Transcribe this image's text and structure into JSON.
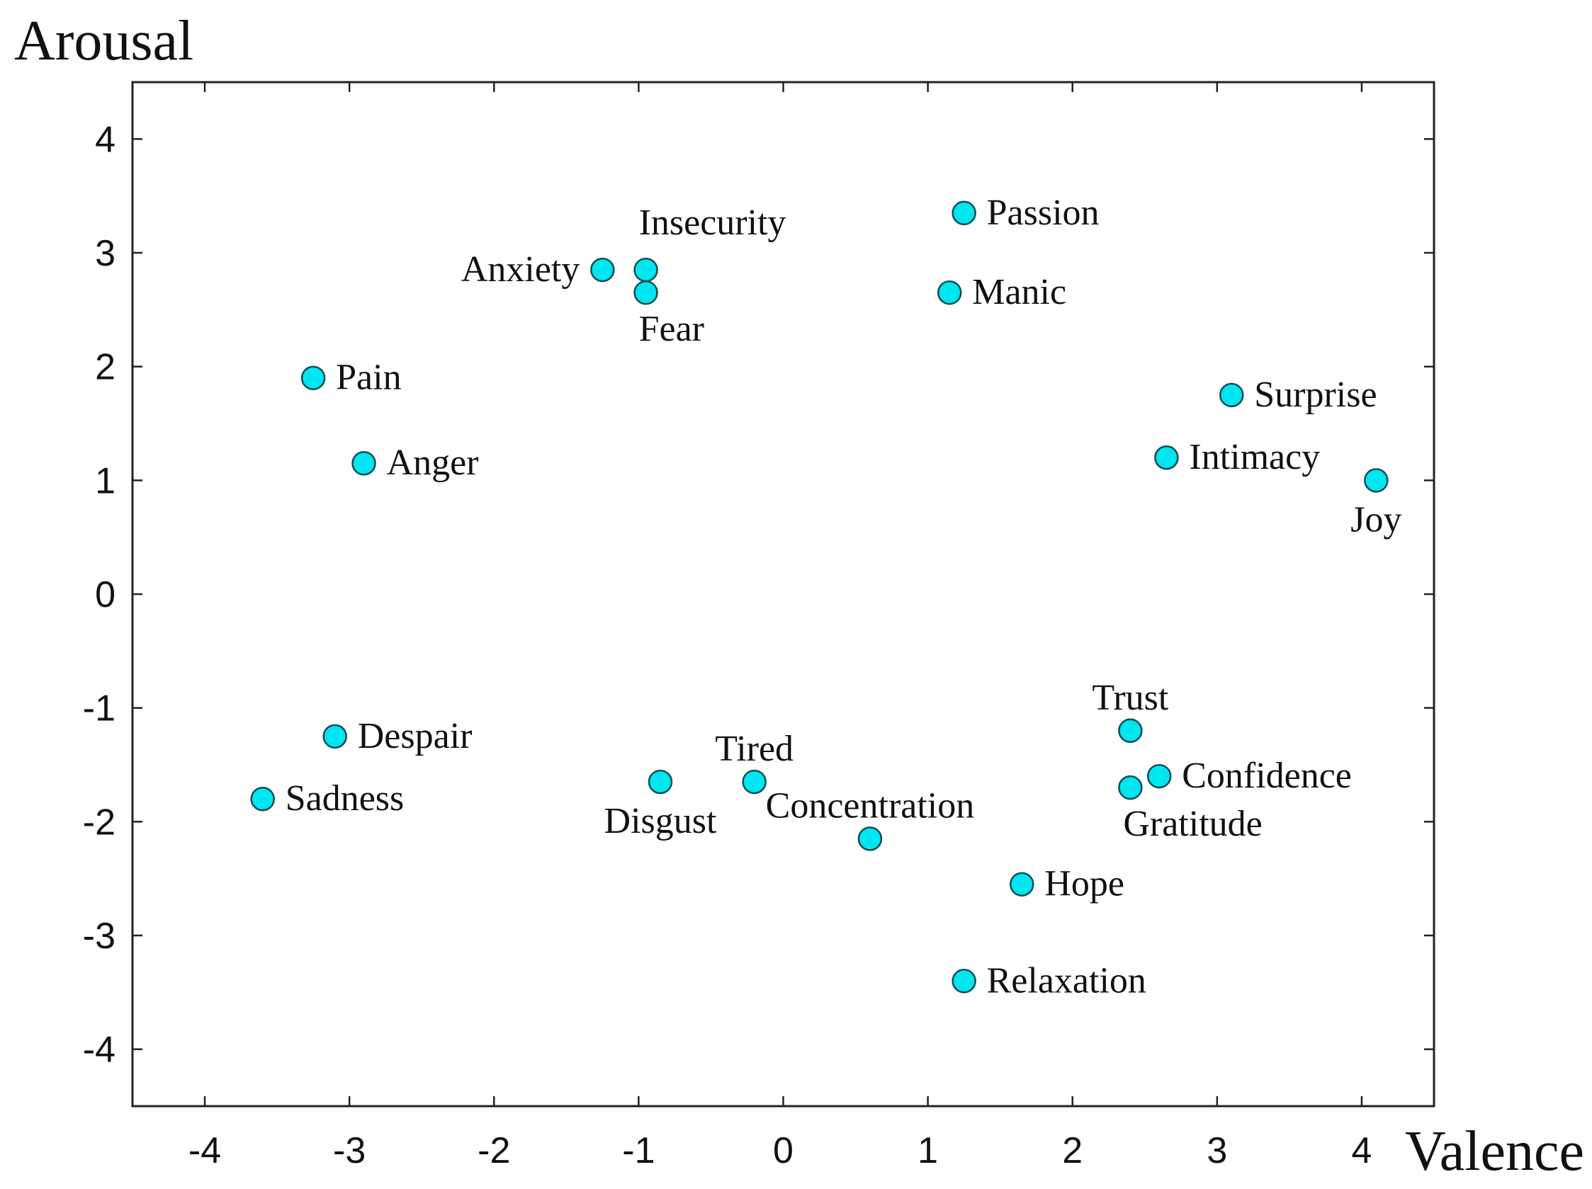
{
  "chart_data": {
    "type": "scatter",
    "xlabel": "Valence",
    "ylabel": "Arousal",
    "xlim": [
      -4.5,
      4.5
    ],
    "ylim": [
      -4.5,
      4.5
    ],
    "xticks": [
      -4,
      -3,
      -2,
      -1,
      0,
      1,
      2,
      3,
      4
    ],
    "yticks": [
      -4,
      -3,
      -2,
      -1,
      0,
      1,
      2,
      3,
      4
    ],
    "grid": false,
    "marker_color": "#00e6f0",
    "points": [
      {
        "label": "Passion",
        "x": 1.25,
        "y": 3.35,
        "label_pos": "right"
      },
      {
        "label": "Insecurity",
        "x": -0.95,
        "y": 2.85,
        "label_pos": "above-right"
      },
      {
        "label": "Anxiety",
        "x": -1.25,
        "y": 2.85,
        "label_pos": "left"
      },
      {
        "label": "Fear",
        "x": -0.95,
        "y": 2.65,
        "label_pos": "below-right"
      },
      {
        "label": "Manic",
        "x": 1.15,
        "y": 2.65,
        "label_pos": "right"
      },
      {
        "label": "Pain",
        "x": -3.25,
        "y": 1.9,
        "label_pos": "right"
      },
      {
        "label": "Surprise",
        "x": 3.1,
        "y": 1.75,
        "label_pos": "right"
      },
      {
        "label": "Anger",
        "x": -2.9,
        "y": 1.15,
        "label_pos": "right"
      },
      {
        "label": "Intimacy",
        "x": 2.65,
        "y": 1.2,
        "label_pos": "right"
      },
      {
        "label": "Joy",
        "x": 4.1,
        "y": 1.0,
        "label_pos": "below"
      },
      {
        "label": "Trust",
        "x": 2.4,
        "y": -1.2,
        "label_pos": "above"
      },
      {
        "label": "Despair",
        "x": -3.1,
        "y": -1.25,
        "label_pos": "right"
      },
      {
        "label": "Confidence",
        "x": 2.6,
        "y": -1.6,
        "label_pos": "right"
      },
      {
        "label": "Tired",
        "x": -0.2,
        "y": -1.65,
        "label_pos": "above"
      },
      {
        "label": "Disgust",
        "x": -0.85,
        "y": -1.65,
        "label_pos": "below"
      },
      {
        "label": "Gratitude",
        "x": 2.4,
        "y": -1.7,
        "label_pos": "below-right"
      },
      {
        "label": "Sadness",
        "x": -3.6,
        "y": -1.8,
        "label_pos": "right"
      },
      {
        "label": "Concentration",
        "x": 0.6,
        "y": -2.15,
        "label_pos": "above"
      },
      {
        "label": "Hope",
        "x": 1.65,
        "y": -2.55,
        "label_pos": "right"
      },
      {
        "label": "Relaxation",
        "x": 1.25,
        "y": -3.4,
        "label_pos": "right"
      }
    ]
  }
}
